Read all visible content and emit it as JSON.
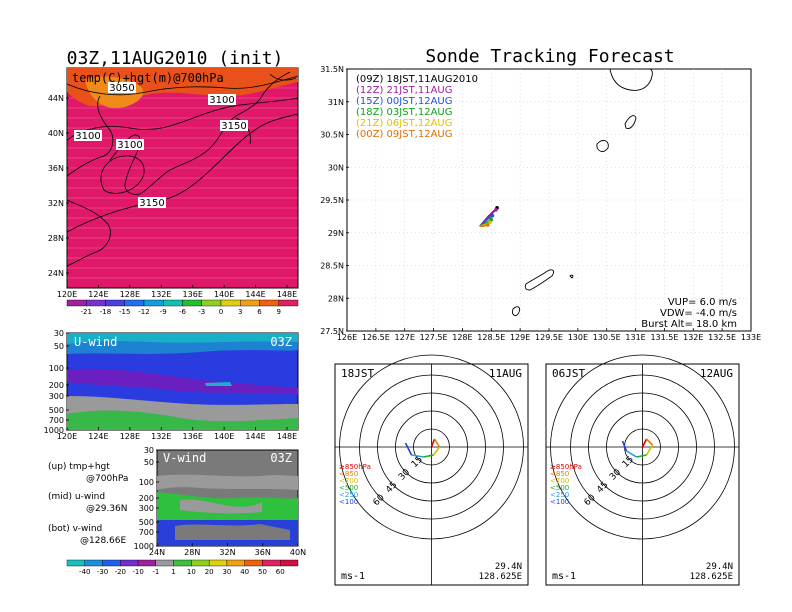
{
  "left_panel": {
    "title": "03Z,11AUG2010 (init)",
    "map_label": "temp(C)+hgt(m)@700hPa",
    "lat_labels": [
      "44N",
      "40N",
      "36N",
      "32N",
      "28N",
      "24N"
    ],
    "lon_labels": [
      "120E",
      "124E",
      "128E",
      "132E",
      "136E",
      "140E",
      "144E",
      "148E"
    ],
    "contour_labels": [
      "3050",
      "3100",
      "3100",
      "3100",
      "3150",
      "3150"
    ],
    "temp_colorbar": [
      "-21",
      "-18",
      "-15",
      "-12",
      "-9",
      "-6",
      "-3",
      "0",
      "3",
      "6",
      "9"
    ]
  },
  "uwind_panel": {
    "label": "U-wind",
    "time": "03Z",
    "pressure_labels": [
      "30",
      "50",
      "100",
      "200",
      "300",
      "500",
      "700",
      "1000"
    ],
    "lon_labels": [
      "120E",
      "124E",
      "128E",
      "132E",
      "136E",
      "140E",
      "144E",
      "148E"
    ]
  },
  "vwind_panel": {
    "label": "V-wind",
    "time": "03Z",
    "pressure_labels": [
      "30",
      "50",
      "100",
      "200",
      "300",
      "500",
      "700",
      "1000"
    ],
    "lat_labels": [
      "24N",
      "28N",
      "32N",
      "36N",
      "40N"
    ]
  },
  "side_notes": {
    "up": "(up) tmp+hgt",
    "up2": "@700hPa",
    "mid": "(mid) u-wind",
    "mid2": "@29.36N",
    "bot": "(bot) v-wind",
    "bot2": "@128.66E"
  },
  "wind_colorbar": [
    "-40",
    "-30",
    "-20",
    "-10",
    "-1",
    "1",
    "10",
    "20",
    "30",
    "40",
    "50",
    "60"
  ],
  "tracking": {
    "title": "Sonde Tracking Forecast",
    "legend": [
      {
        "text": "(09Z)  18JST,11AUG2010",
        "color": "#000000"
      },
      {
        "text": "(12Z)  21JST,11AUG",
        "color": "#a020a0"
      },
      {
        "text": "(15Z)  00JST,12AUG",
        "color": "#2050e0"
      },
      {
        "text": "(18Z)  03JST,12AUG",
        "color": "#10a020"
      },
      {
        "text": "(21Z)  06JST,12AUG",
        "color": "#e0c000"
      },
      {
        "text": "(00Z)  09JST,12AUG",
        "color": "#e07000"
      }
    ],
    "lat_labels": [
      "31.5N",
      "31N",
      "30.5N",
      "30N",
      "29.5N",
      "29N",
      "28.5N",
      "28N",
      "27.5N"
    ],
    "lon_labels": [
      "126E",
      "126.5E",
      "127E",
      "127.5E",
      "128E",
      "128.5E",
      "129E",
      "129.5E",
      "130E",
      "130.5E",
      "131E",
      "131.5E",
      "132E",
      "132.5E",
      "133E"
    ],
    "vup": "VUP=  6.0  m/s",
    "vdw": "VDW= -4.0  m/s",
    "burst": "Burst Alt= 18.0  km"
  },
  "hodo1": {
    "time": "18JST",
    "date": "11AUG",
    "unit": "ms-1",
    "lat": "29.4N",
    "lon": "128.625E",
    "ring_labels": [
      "15",
      "30",
      "45",
      "60"
    ]
  },
  "hodo2": {
    "time": "06JST",
    "date": "12AUG",
    "unit": "ms-1",
    "lat": "29.4N",
    "lon": "128.625E",
    "ring_labels": [
      "15",
      "30",
      "45",
      "60"
    ]
  },
  "hodo_legend": [
    {
      "text": "≥850hPa",
      "color": "#e00000"
    },
    {
      "text": "<850",
      "color": "#e08000"
    },
    {
      "text": "<700",
      "color": "#d0c000"
    },
    {
      "text": "<500",
      "color": "#10b020"
    },
    {
      "text": "<250",
      "color": "#20a0e0"
    },
    {
      "text": "<100",
      "color": "#2040e0"
    }
  ],
  "chart_data": {
    "type": "line",
    "title": "Sonde Tracking Forecast",
    "xlabel": "",
    "ylabel": "",
    "xlim": [
      126,
      133
    ],
    "ylim": [
      27.5,
      31.5
    ],
    "series": [
      {
        "name": "(09Z) 18JST,11AUG2010",
        "x": [
          128.3,
          128.45,
          128.6
        ],
        "y": [
          29.1,
          29.25,
          29.38
        ]
      },
      {
        "name": "(12Z) 21JST,11AUG",
        "x": [
          128.3,
          128.45,
          128.58
        ],
        "y": [
          29.1,
          29.24,
          29.35
        ]
      },
      {
        "name": "(15Z) 00JST,12AUG",
        "x": [
          128.3,
          128.4,
          128.52
        ],
        "y": [
          29.1,
          29.18,
          29.26
        ]
      },
      {
        "name": "(18Z) 03JST,12AUG",
        "x": [
          128.3,
          128.4,
          128.5
        ],
        "y": [
          29.1,
          29.15,
          29.2
        ]
      },
      {
        "name": "(21Z) 06JST,12AUG",
        "x": [
          128.3,
          128.38,
          128.48
        ],
        "y": [
          29.1,
          29.12,
          29.16
        ]
      },
      {
        "name": "(00Z) 09JST,12AUG",
        "x": [
          128.3,
          128.36,
          128.44
        ],
        "y": [
          29.1,
          29.1,
          29.12
        ]
      }
    ]
  }
}
